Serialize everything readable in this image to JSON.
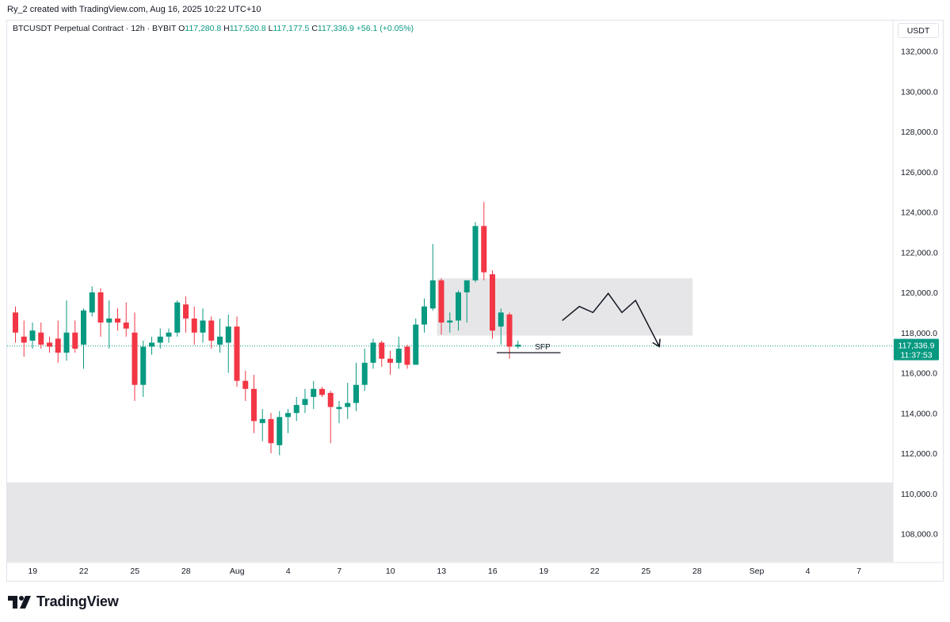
{
  "byline": "Ry_2 created with TradingView.com, Aug 16, 2025 10:22 UTC+10",
  "legend": {
    "symbol": "BTCUSDT Perpetual Contract · 12h · BYBIT",
    "open_label": "O",
    "open": "117,280.8",
    "high_label": "H",
    "high": "117,520.8",
    "low_label": "L",
    "low": "117,177.5",
    "close_label": "C",
    "close": "117,336.9",
    "change": "+56.1 (+0.05%)"
  },
  "currency": "USDT",
  "logo_text": "TradingView",
  "colors": {
    "up": "#089981",
    "down": "#f23645",
    "zone": "#e6e6e8",
    "axis_text": "#131722",
    "price_line": "#089981"
  },
  "chart_data": {
    "type": "candlestick",
    "timeframe": "12h",
    "y_ticks": [
      108000,
      110000,
      112000,
      114000,
      116000,
      118000,
      120000,
      122000,
      124000,
      126000,
      128000,
      130000,
      132000
    ],
    "y_tick_labels": [
      "108,000.0",
      "110,000.0",
      "112,000.0",
      "114,000.0",
      "116,000.0",
      "118,000.0",
      "120,000.0",
      "122,000.0",
      "124,000.0",
      "126,000.0",
      "128,000.0",
      "130,000.0",
      "132,000.0"
    ],
    "ylim": [
      106500,
      133500
    ],
    "x_ticks": [
      {
        "i": 1,
        "label": "19"
      },
      {
        "i": 7,
        "label": "22"
      },
      {
        "i": 13,
        "label": "25"
      },
      {
        "i": 19,
        "label": "28"
      },
      {
        "i": 25,
        "label": "Aug"
      },
      {
        "i": 31,
        "label": "4"
      },
      {
        "i": 37,
        "label": "7"
      },
      {
        "i": 43,
        "label": "10"
      },
      {
        "i": 49,
        "label": "13"
      },
      {
        "i": 55,
        "label": "16"
      },
      {
        "i": 61,
        "label": "19"
      },
      {
        "i": 67,
        "label": "22"
      },
      {
        "i": 73,
        "label": "25"
      },
      {
        "i": 79,
        "label": "28"
      },
      {
        "i": 86,
        "label": "Sep"
      },
      {
        "i": 92,
        "label": "4"
      },
      {
        "i": 98,
        "label": "7"
      }
    ],
    "candles": [
      {
        "o": 119000,
        "h": 119300,
        "l": 117500,
        "c": 118000
      },
      {
        "o": 117800,
        "h": 118600,
        "l": 116800,
        "c": 117500
      },
      {
        "o": 117600,
        "h": 118500,
        "l": 117200,
        "c": 118100
      },
      {
        "o": 118000,
        "h": 118500,
        "l": 117200,
        "c": 117400
      },
      {
        "o": 117500,
        "h": 117800,
        "l": 117000,
        "c": 117300
      },
      {
        "o": 117700,
        "h": 118600,
        "l": 116500,
        "c": 117000
      },
      {
        "o": 117000,
        "h": 119600,
        "l": 116600,
        "c": 118000
      },
      {
        "o": 118000,
        "h": 118600,
        "l": 117000,
        "c": 117200
      },
      {
        "o": 117400,
        "h": 119200,
        "l": 116200,
        "c": 119100
      },
      {
        "o": 119000,
        "h": 120300,
        "l": 118800,
        "c": 120000
      },
      {
        "o": 120000,
        "h": 120200,
        "l": 117800,
        "c": 118500
      },
      {
        "o": 118500,
        "h": 119600,
        "l": 117200,
        "c": 118700
      },
      {
        "o": 118700,
        "h": 119200,
        "l": 118100,
        "c": 118500
      },
      {
        "o": 118500,
        "h": 119500,
        "l": 117800,
        "c": 118200
      },
      {
        "o": 118000,
        "h": 119000,
        "l": 114600,
        "c": 115400
      },
      {
        "o": 115400,
        "h": 117600,
        "l": 114800,
        "c": 117300
      },
      {
        "o": 117300,
        "h": 117800,
        "l": 116900,
        "c": 117500
      },
      {
        "o": 117500,
        "h": 118200,
        "l": 117200,
        "c": 117800
      },
      {
        "o": 117800,
        "h": 118200,
        "l": 117500,
        "c": 118000
      },
      {
        "o": 118000,
        "h": 119600,
        "l": 117800,
        "c": 119500
      },
      {
        "o": 119400,
        "h": 119800,
        "l": 118000,
        "c": 118700
      },
      {
        "o": 118700,
        "h": 119300,
        "l": 117400,
        "c": 118000
      },
      {
        "o": 118000,
        "h": 119200,
        "l": 117500,
        "c": 118600
      },
      {
        "o": 118600,
        "h": 118800,
        "l": 117200,
        "c": 117600
      },
      {
        "o": 117400,
        "h": 118700,
        "l": 117000,
        "c": 117800
      },
      {
        "o": 117500,
        "h": 118900,
        "l": 116000,
        "c": 118300
      },
      {
        "o": 118300,
        "h": 118800,
        "l": 115300,
        "c": 115600
      },
      {
        "o": 115600,
        "h": 116100,
        "l": 114600,
        "c": 115200
      },
      {
        "o": 115200,
        "h": 115900,
        "l": 113000,
        "c": 113600
      },
      {
        "o": 113500,
        "h": 114200,
        "l": 112600,
        "c": 113700
      },
      {
        "o": 113700,
        "h": 114000,
        "l": 112000,
        "c": 112500
      },
      {
        "o": 112400,
        "h": 114100,
        "l": 111900,
        "c": 113800
      },
      {
        "o": 113800,
        "h": 114200,
        "l": 113000,
        "c": 114000
      },
      {
        "o": 114000,
        "h": 114800,
        "l": 113600,
        "c": 114400
      },
      {
        "o": 114400,
        "h": 115200,
        "l": 114000,
        "c": 114700
      },
      {
        "o": 114800,
        "h": 115600,
        "l": 114200,
        "c": 115200
      },
      {
        "o": 115200,
        "h": 115300,
        "l": 114800,
        "c": 114900
      },
      {
        "o": 115000,
        "h": 115100,
        "l": 112500,
        "c": 114300
      },
      {
        "o": 114200,
        "h": 114600,
        "l": 113500,
        "c": 114300
      },
      {
        "o": 114300,
        "h": 115500,
        "l": 113700,
        "c": 114500
      },
      {
        "o": 114500,
        "h": 116500,
        "l": 114100,
        "c": 115400
      },
      {
        "o": 115400,
        "h": 117200,
        "l": 115100,
        "c": 116500
      },
      {
        "o": 116500,
        "h": 117700,
        "l": 116200,
        "c": 117500
      },
      {
        "o": 117500,
        "h": 117600,
        "l": 116300,
        "c": 116700
      },
      {
        "o": 116700,
        "h": 117100,
        "l": 115900,
        "c": 116500
      },
      {
        "o": 116500,
        "h": 117800,
        "l": 116200,
        "c": 117200
      },
      {
        "o": 117300,
        "h": 117400,
        "l": 116200,
        "c": 116400
      },
      {
        "o": 116400,
        "h": 118700,
        "l": 116400,
        "c": 118400
      },
      {
        "o": 118400,
        "h": 119700,
        "l": 118000,
        "c": 119300
      },
      {
        "o": 119200,
        "h": 122400,
        "l": 119100,
        "c": 120600
      },
      {
        "o": 120600,
        "h": 120700,
        "l": 117900,
        "c": 118500
      },
      {
        "o": 118500,
        "h": 119000,
        "l": 118000,
        "c": 118600
      },
      {
        "o": 118600,
        "h": 120100,
        "l": 118100,
        "c": 120000
      },
      {
        "o": 120000,
        "h": 120600,
        "l": 118500,
        "c": 120600
      },
      {
        "o": 120600,
        "h": 123500,
        "l": 120500,
        "c": 123300
      },
      {
        "o": 123300,
        "h": 124500,
        "l": 120600,
        "c": 121000
      },
      {
        "o": 120900,
        "h": 121100,
        "l": 117700,
        "c": 118100
      },
      {
        "o": 118300,
        "h": 119200,
        "l": 117400,
        "c": 119000
      },
      {
        "o": 118900,
        "h": 119000,
        "l": 116700,
        "c": 117300
      },
      {
        "o": 117300,
        "h": 117600,
        "l": 117200,
        "c": 117400
      }
    ],
    "current_price": 117336.9,
    "current_price_label": "117,336.9",
    "countdown_label": "11:37:53",
    "zones": [
      {
        "name": "resistance-zone",
        "i0": 49.5,
        "i1": 79.5,
        "top": 120700,
        "bottom": 117850
      },
      {
        "name": "support-zone",
        "i0": -1.5,
        "i1": 105,
        "top": 110550,
        "bottom": 106500
      }
    ],
    "sfp": {
      "label": "SFP",
      "i0": 56.5,
      "i1": 64,
      "price": 117000
    },
    "projection_path": [
      [
        64.2,
        118600
      ],
      [
        66.2,
        119300
      ],
      [
        67.8,
        119000
      ],
      [
        69.6,
        119950
      ],
      [
        71.2,
        119000
      ],
      [
        72.8,
        119600
      ],
      [
        75.6,
        117300
      ]
    ]
  }
}
